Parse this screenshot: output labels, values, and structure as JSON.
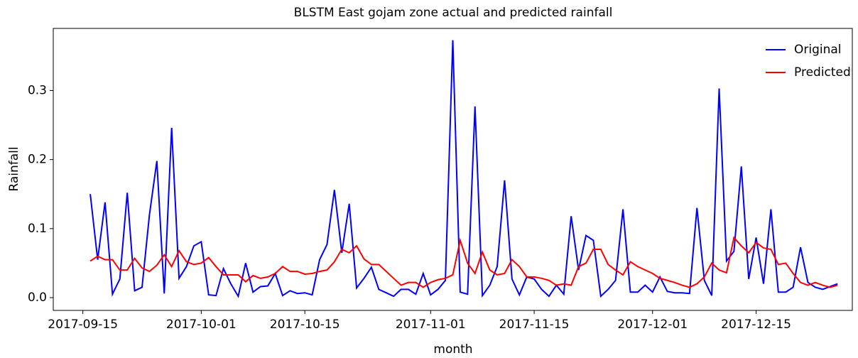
{
  "chart_data": {
    "type": "line",
    "title": "BLSTM East gojam zone actual and predicted rainfall",
    "x_label": "month",
    "y_label": "Rainfall",
    "x": [
      "2017-09-16",
      "2017-09-17",
      "2017-09-18",
      "2017-09-19",
      "2017-09-20",
      "2017-09-21",
      "2017-09-22",
      "2017-09-23",
      "2017-09-24",
      "2017-09-25",
      "2017-09-26",
      "2017-09-27",
      "2017-09-28",
      "2017-09-29",
      "2017-09-30",
      "2017-10-01",
      "2017-10-02",
      "2017-10-03",
      "2017-10-04",
      "2017-10-05",
      "2017-10-06",
      "2017-10-07",
      "2017-10-08",
      "2017-10-09",
      "2017-10-10",
      "2017-10-11",
      "2017-10-12",
      "2017-10-13",
      "2017-10-14",
      "2017-10-15",
      "2017-10-16",
      "2017-10-17",
      "2017-10-18",
      "2017-10-19",
      "2017-10-20",
      "2017-10-21",
      "2017-10-22",
      "2017-10-23",
      "2017-10-24",
      "2017-10-25",
      "2017-10-26",
      "2017-10-27",
      "2017-10-28",
      "2017-10-29",
      "2017-10-30",
      "2017-10-31",
      "2017-11-01",
      "2017-11-02",
      "2017-11-03",
      "2017-11-04",
      "2017-11-05",
      "2017-11-06",
      "2017-11-07",
      "2017-11-08",
      "2017-11-09",
      "2017-11-10",
      "2017-11-11",
      "2017-11-12",
      "2017-11-13",
      "2017-11-14",
      "2017-11-15",
      "2017-11-16",
      "2017-11-17",
      "2017-11-18",
      "2017-11-19",
      "2017-11-20",
      "2017-11-21",
      "2017-11-22",
      "2017-11-23",
      "2017-11-24",
      "2017-11-25",
      "2017-11-26",
      "2017-11-27",
      "2017-11-28",
      "2017-11-29",
      "2017-11-30",
      "2017-12-01",
      "2017-12-02",
      "2017-12-03",
      "2017-12-04",
      "2017-12-05",
      "2017-12-06",
      "2017-12-07",
      "2017-12-08",
      "2017-12-09",
      "2017-12-10",
      "2017-12-11",
      "2017-12-12",
      "2017-12-13",
      "2017-12-14",
      "2017-12-15",
      "2017-12-16",
      "2017-12-17",
      "2017-12-18",
      "2017-12-19",
      "2017-12-20",
      "2017-12-21",
      "2017-12-22",
      "2017-12-23",
      "2017-12-24",
      "2017-12-25",
      "2017-12-26"
    ],
    "series": [
      {
        "name": "Original",
        "color": "#0000ff",
        "values": [
          0.15,
          0.055,
          0.138,
          0.005,
          0.027,
          0.152,
          0.01,
          0.015,
          0.12,
          0.198,
          0.006,
          0.246,
          0.028,
          0.045,
          0.075,
          0.081,
          0.004,
          0.003,
          0.042,
          0.02,
          0.002,
          0.05,
          0.008,
          0.016,
          0.017,
          0.035,
          0.003,
          0.01,
          0.006,
          0.007,
          0.004,
          0.055,
          0.077,
          0.156,
          0.065,
          0.136,
          0.014,
          0.028,
          0.044,
          0.012,
          0.007,
          0.002,
          0.012,
          0.012,
          0.005,
          0.035,
          0.004,
          0.012,
          0.025,
          0.373,
          0.008,
          0.005,
          0.277,
          0.003,
          0.018,
          0.045,
          0.17,
          0.027,
          0.004,
          0.03,
          0.027,
          0.012,
          0.002,
          0.018,
          0.005,
          0.118,
          0.04,
          0.09,
          0.083,
          0.002,
          0.012,
          0.025,
          0.128,
          0.008,
          0.008,
          0.018,
          0.008,
          0.03,
          0.009,
          0.007,
          0.007,
          0.006,
          0.13,
          0.025,
          0.003,
          0.303,
          0.053,
          0.067,
          0.19,
          0.027,
          0.087,
          0.02,
          0.128,
          0.008,
          0.008,
          0.015,
          0.073,
          0.022,
          0.015,
          0.012,
          0.016,
          0.02
        ]
      },
      {
        "name": "Predicted",
        "color": "#ff0000",
        "values": [
          0.053,
          0.06,
          0.055,
          0.055,
          0.04,
          0.04,
          0.057,
          0.043,
          0.038,
          0.047,
          0.062,
          0.045,
          0.068,
          0.052,
          0.048,
          0.05,
          0.058,
          0.045,
          0.033,
          0.033,
          0.033,
          0.023,
          0.032,
          0.028,
          0.03,
          0.035,
          0.045,
          0.038,
          0.038,
          0.034,
          0.035,
          0.038,
          0.04,
          0.052,
          0.07,
          0.065,
          0.075,
          0.056,
          0.048,
          0.048,
          0.038,
          0.028,
          0.018,
          0.022,
          0.022,
          0.015,
          0.022,
          0.026,
          0.028,
          0.033,
          0.083,
          0.05,
          0.035,
          0.066,
          0.04,
          0.033,
          0.035,
          0.055,
          0.045,
          0.03,
          0.03,
          0.028,
          0.025,
          0.018,
          0.02,
          0.018,
          0.045,
          0.05,
          0.07,
          0.07,
          0.048,
          0.04,
          0.033,
          0.052,
          0.045,
          0.04,
          0.035,
          0.028,
          0.025,
          0.022,
          0.018,
          0.015,
          0.02,
          0.03,
          0.05,
          0.04,
          0.036,
          0.087,
          0.075,
          0.065,
          0.08,
          0.072,
          0.07,
          0.048,
          0.05,
          0.035,
          0.022,
          0.018,
          0.022,
          0.018,
          0.015,
          0.018
        ]
      }
    ],
    "xlim": [
      "2017-09-11",
      "2017-12-28"
    ],
    "xticks": [
      "2017-09-15",
      "2017-10-01",
      "2017-10-15",
      "2017-11-01",
      "2017-11-15",
      "2017-12-01",
      "2017-12-15"
    ],
    "ylim": [
      -0.0185,
      0.39
    ],
    "yticks": [
      {
        "value": 0,
        "label": "0.0"
      },
      0.1,
      0.2,
      0.3
    ],
    "grid": false,
    "legend": "upper right"
  }
}
